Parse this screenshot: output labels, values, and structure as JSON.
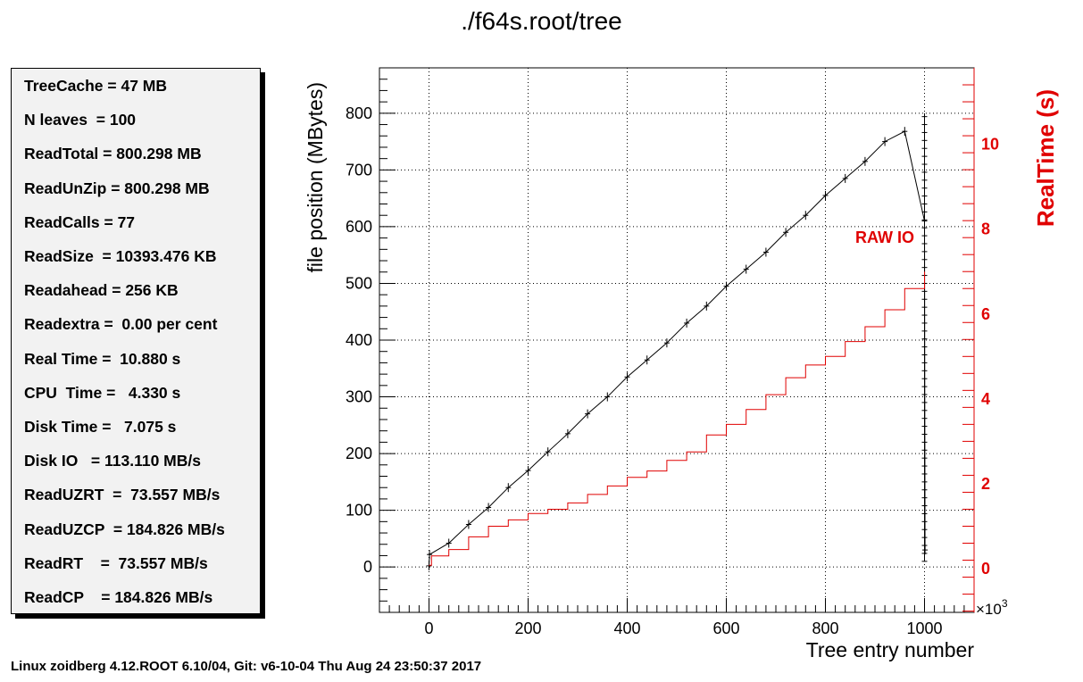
{
  "title": "./f64s.root/tree",
  "footer": "Linux zoidberg 4.12.ROOT 6.10/04, Git: v6-10-04 Thu Aug 24 23:50:37 2017",
  "stats": [
    "TreeCache = 47 MB",
    "N leaves  = 100",
    "ReadTotal = 800.298 MB",
    "ReadUnZip = 800.298 MB",
    "ReadCalls = 77",
    "ReadSize  = 10393.476 KB",
    "Readahead = 256 KB",
    "Readextra =  0.00 per cent",
    "Real Time =  10.880 s",
    "CPU  Time =   4.330 s",
    "Disk Time =   7.075 s",
    "Disk IO   = 113.110 MB/s",
    "ReadUZRT  =  73.557 MB/s",
    "ReadUZCP  = 184.826 MB/s",
    "ReadRT    =  73.557 MB/s",
    "ReadCP    = 184.826 MB/s"
  ],
  "chart_data": {
    "type": "line",
    "xlabel": "Tree entry number",
    "ylabel": "file position (MBytes)",
    "y2label": "RealTime (s)",
    "x_exponent_label": "×10",
    "x_exponent_power": "3",
    "annotation": "RAW IO",
    "xlim": [
      -100,
      1100
    ],
    "ylim": [
      -80,
      880
    ],
    "y2lim": [
      -1.03,
      11.8
    ],
    "x_ticks": [
      0,
      200,
      400,
      600,
      800,
      1000
    ],
    "y_ticks": [
      0,
      100,
      200,
      300,
      400,
      500,
      600,
      700,
      800
    ],
    "y2_ticks": [
      0,
      2,
      4,
      6,
      8,
      10
    ],
    "grid": true,
    "colors": {
      "file_position": "#000000",
      "realtime": "#e00000",
      "right_axis": "#e00000"
    },
    "series": [
      {
        "axis": "left",
        "x": [
          0,
          1,
          40,
          80,
          120,
          160,
          200,
          240,
          280,
          320,
          360,
          400,
          440,
          480,
          520,
          560,
          600,
          640,
          680,
          720,
          760,
          800,
          840,
          880,
          920,
          960,
          1000,
          1001
        ],
        "values": [
          2,
          22,
          42,
          75,
          105,
          140,
          170,
          203,
          235,
          270,
          300,
          335,
          365,
          395,
          430,
          460,
          495,
          525,
          555,
          590,
          620,
          655,
          685,
          715,
          750,
          768,
          610,
          30
        ]
      },
      {
        "axis": "right",
        "x": [
          0,
          5,
          40,
          80,
          120,
          160,
          200,
          240,
          280,
          320,
          360,
          400,
          440,
          480,
          520,
          560,
          600,
          640,
          680,
          720,
          760,
          800,
          840,
          880,
          920,
          960,
          1000
        ],
        "values": [
          0.08,
          0.3,
          0.45,
          0.75,
          1.0,
          1.15,
          1.3,
          1.4,
          1.55,
          1.75,
          1.95,
          2.15,
          2.3,
          2.55,
          2.75,
          3.15,
          3.4,
          3.75,
          4.1,
          4.5,
          4.8,
          5.0,
          5.35,
          5.7,
          6.1,
          6.6,
          7.0
        ]
      }
    ]
  }
}
